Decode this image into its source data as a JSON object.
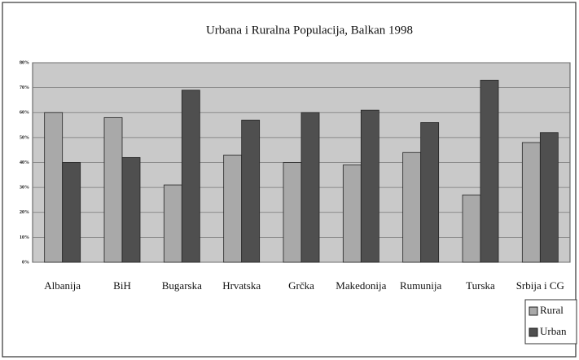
{
  "chart_data": {
    "type": "bar",
    "title": "Urbana i Ruralna Populacija, Balkan 1998",
    "categories": [
      "Albanija",
      "BiH",
      "Bugarska",
      "Hrvatska",
      "Grčka",
      "Makedonija",
      "Rumunija",
      "Turska",
      "Srbija i CG"
    ],
    "series": [
      {
        "name": "Rural",
        "color": "#a9a9a9",
        "values": [
          60,
          58,
          31,
          43,
          40,
          39,
          44,
          27,
          48
        ]
      },
      {
        "name": "Urban",
        "color": "#4f4f4f",
        "values": [
          40,
          42,
          69,
          57,
          60,
          61,
          56,
          73,
          52
        ]
      }
    ],
    "ylim": [
      0,
      80
    ],
    "yticks": [
      {
        "value": 0,
        "label": "0%"
      },
      {
        "value": 10,
        "label": "10%"
      },
      {
        "value": 20,
        "label": "20%"
      },
      {
        "value": 30,
        "label": "30%"
      },
      {
        "value": 40,
        "label": "40%"
      },
      {
        "value": 50,
        "label": "50%"
      },
      {
        "value": 60,
        "label": "60%"
      },
      {
        "value": 70,
        "label": "70%"
      },
      {
        "value": 80,
        "label": "80%"
      }
    ],
    "grid": true,
    "legend": "bottom-right"
  }
}
